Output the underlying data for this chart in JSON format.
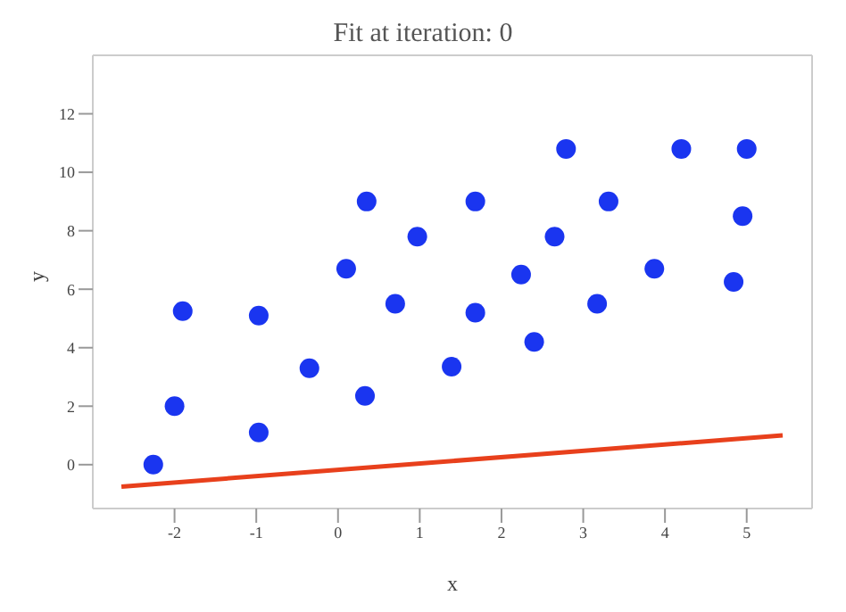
{
  "chart_data": {
    "type": "scatter",
    "title": "Fit at iteration: 0",
    "xlabel": "x",
    "ylabel": "y",
    "xlim": [
      -3,
      5.8
    ],
    "ylim": [
      -1.5,
      14
    ],
    "xticks": [
      -2,
      -1,
      0,
      1,
      2,
      3,
      4,
      5
    ],
    "yticks": [
      0,
      2,
      4,
      6,
      8,
      10,
      12
    ],
    "grid": false,
    "legend": false,
    "series": [
      {
        "color": "#1a35f0",
        "marker": "circle",
        "x": [
          -2.26,
          -2.0,
          -1.9,
          -0.97,
          -0.97,
          -0.35,
          0.33,
          0.1,
          0.35,
          0.7,
          0.97,
          1.39,
          1.68,
          1.68,
          2.24,
          2.4,
          2.65,
          2.79,
          3.17,
          3.31,
          3.87,
          4.2,
          4.84,
          4.95,
          5.0
        ],
        "values": [
          0.0,
          2.0,
          5.25,
          1.1,
          5.1,
          3.3,
          2.35,
          6.7,
          9.0,
          5.5,
          7.8,
          3.35,
          5.2,
          9.0,
          6.5,
          4.2,
          7.8,
          10.8,
          5.5,
          9.0,
          6.7,
          10.8,
          6.25,
          8.5,
          10.8
        ]
      },
      {
        "type": "line",
        "color": "#e8401c",
        "marker": "none",
        "line_style": "solid",
        "x": [
          -2.65,
          5.44
        ],
        "values": [
          -0.75,
          1.0
        ]
      }
    ]
  }
}
